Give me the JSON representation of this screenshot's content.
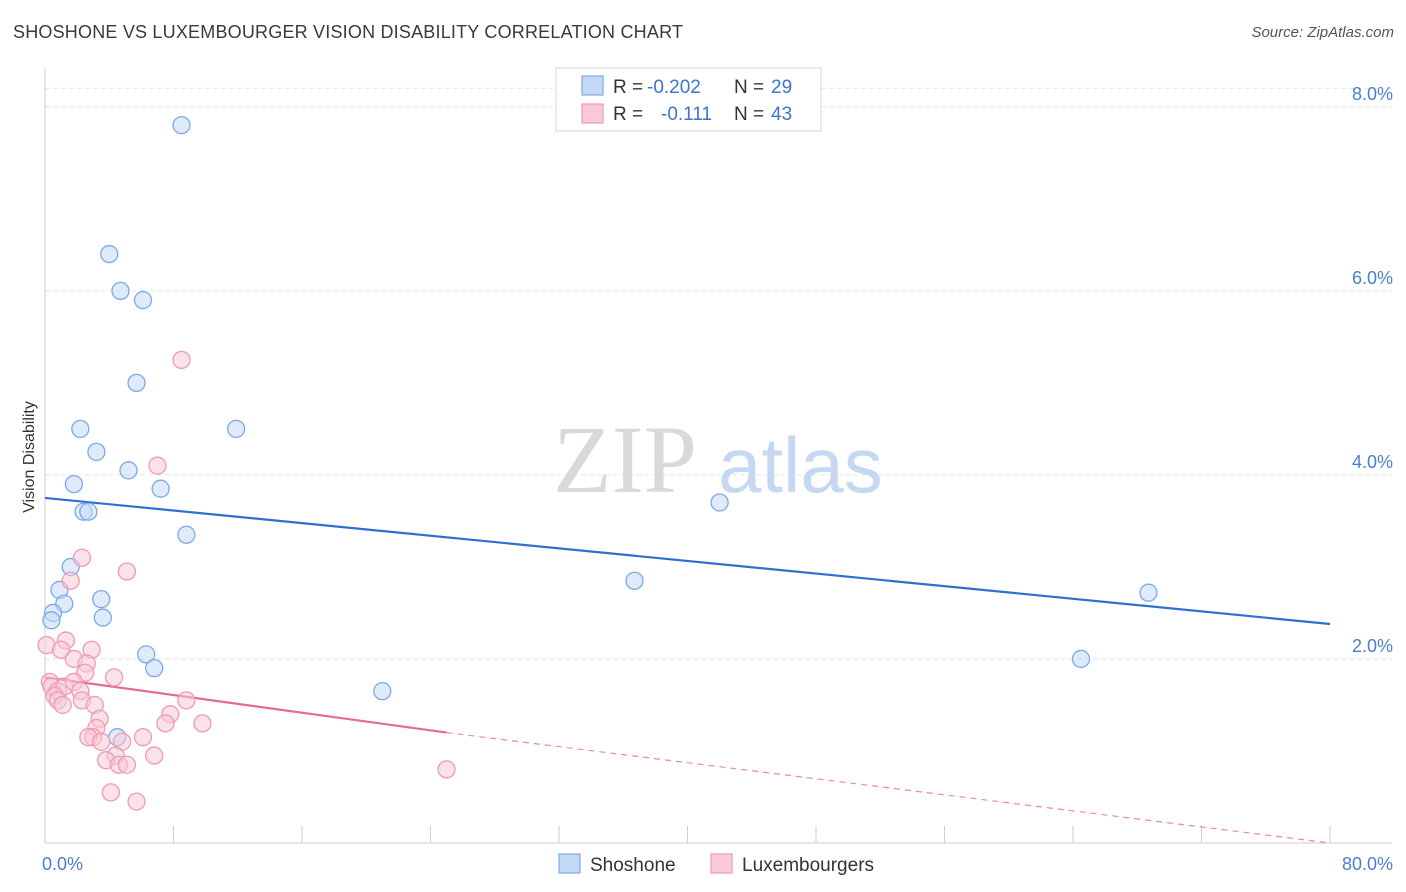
{
  "title": "SHOSHONE VS LUXEMBOURGER VISION DISABILITY CORRELATION CHART",
  "source": "Source: ZipAtlas.com",
  "watermark": {
    "zip": "ZIP",
    "atlas": "atlas"
  },
  "chart_data": {
    "type": "scatter",
    "title": "SHOSHONE VS LUXEMBOURGER VISION DISABILITY CORRELATION CHART",
    "ylabel": "Vision Disability",
    "xlim": [
      0,
      80
    ],
    "ylim": [
      0,
      8.4
    ],
    "x_tick_labels": [
      {
        "value": 0,
        "label": "0.0%"
      },
      {
        "value": 80,
        "label": "80.0%"
      }
    ],
    "y_tick_labels": [
      {
        "value": 2,
        "label": "2.0%"
      },
      {
        "value": 4,
        "label": "4.0%"
      },
      {
        "value": 6,
        "label": "6.0%"
      },
      {
        "value": 8,
        "label": "8.0%"
      }
    ],
    "grid": "horizontal dashed",
    "legend": {
      "placement": "top-center",
      "entries": [
        {
          "r_label": "R =",
          "r_value": "-0.202",
          "n_label": "N =",
          "n_value": "29"
        },
        {
          "r_label": "R =",
          "r_value": "-0.111",
          "n_label": "N =",
          "n_value": "43"
        }
      ]
    },
    "series": [
      {
        "name": "Shoshone",
        "color": "#7aaae8",
        "fill": "#c5d9f5",
        "trend": {
          "x": [
            0,
            80
          ],
          "y": [
            3.75,
            2.38
          ]
        },
        "points": [
          [
            8.5,
            7.8
          ],
          [
            4.0,
            6.4
          ],
          [
            4.7,
            6.0
          ],
          [
            6.1,
            5.9
          ],
          [
            5.7,
            5.0
          ],
          [
            2.2,
            4.5
          ],
          [
            11.9,
            4.5
          ],
          [
            3.2,
            4.25
          ],
          [
            5.2,
            4.05
          ],
          [
            1.8,
            3.9
          ],
          [
            7.2,
            3.85
          ],
          [
            2.4,
            3.6
          ],
          [
            2.7,
            3.6
          ],
          [
            8.8,
            3.35
          ],
          [
            1.6,
            3.0
          ],
          [
            0.9,
            2.75
          ],
          [
            1.2,
            2.6
          ],
          [
            3.5,
            2.65
          ],
          [
            3.6,
            2.45
          ],
          [
            0.5,
            2.5
          ],
          [
            0.4,
            2.42
          ],
          [
            6.3,
            2.05
          ],
          [
            6.8,
            1.9
          ],
          [
            21.0,
            1.65
          ],
          [
            42.0,
            3.7
          ],
          [
            36.7,
            2.85
          ],
          [
            68.7,
            2.72
          ],
          [
            64.5,
            2.0
          ],
          [
            4.5,
            1.15
          ]
        ]
      },
      {
        "name": "Luxembourgers",
        "color": "#ef9ab5",
        "fill": "#f8c9d6",
        "trend": {
          "x": [
            0,
            25
          ],
          "y": [
            1.8,
            1.2
          ]
        },
        "trend_extension": {
          "x": [
            25,
            80
          ],
          "y": [
            1.2,
            -0.1
          ]
        },
        "points": [
          [
            0.1,
            2.15
          ],
          [
            8.5,
            5.25
          ],
          [
            7.0,
            4.1
          ],
          [
            2.3,
            3.1
          ],
          [
            5.1,
            2.95
          ],
          [
            1.6,
            2.85
          ],
          [
            1.3,
            2.2
          ],
          [
            1.0,
            2.1
          ],
          [
            2.9,
            2.1
          ],
          [
            1.8,
            2.0
          ],
          [
            2.6,
            1.95
          ],
          [
            2.5,
            1.85
          ],
          [
            4.3,
            1.8
          ],
          [
            0.3,
            1.75
          ],
          [
            0.4,
            1.7
          ],
          [
            0.8,
            1.65
          ],
          [
            1.2,
            1.7
          ],
          [
            1.8,
            1.75
          ],
          [
            2.2,
            1.65
          ],
          [
            0.6,
            1.6
          ],
          [
            0.8,
            1.55
          ],
          [
            1.1,
            1.5
          ],
          [
            2.3,
            1.55
          ],
          [
            3.1,
            1.5
          ],
          [
            8.8,
            1.55
          ],
          [
            7.8,
            1.4
          ],
          [
            3.4,
            1.35
          ],
          [
            7.5,
            1.3
          ],
          [
            9.8,
            1.3
          ],
          [
            3.2,
            1.25
          ],
          [
            3.0,
            1.15
          ],
          [
            2.7,
            1.15
          ],
          [
            3.5,
            1.1
          ],
          [
            4.8,
            1.1
          ],
          [
            6.1,
            1.15
          ],
          [
            4.4,
            0.95
          ],
          [
            3.8,
            0.9
          ],
          [
            4.6,
            0.85
          ],
          [
            5.1,
            0.85
          ],
          [
            6.8,
            0.95
          ],
          [
            25.0,
            0.8
          ],
          [
            4.1,
            0.55
          ],
          [
            5.7,
            0.45
          ]
        ]
      }
    ]
  }
}
